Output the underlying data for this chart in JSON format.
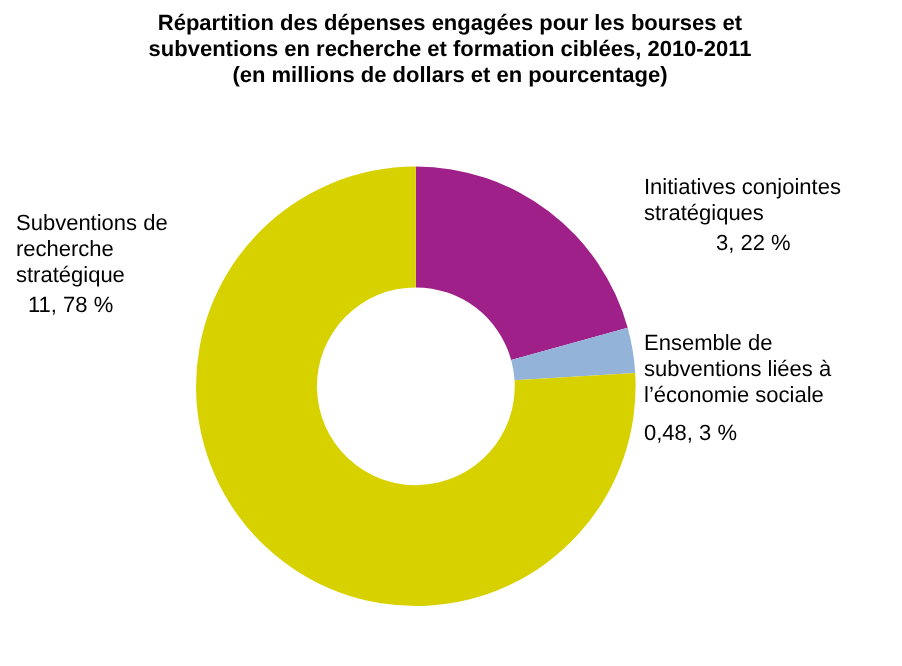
{
  "chart_data": {
    "type": "donut",
    "title": "Répartition des dépenses engagées pour les bourses et subventions en recherche et formation ciblées, 2010-2011",
    "subtitle": "(en millions de dollars et en pourcentage)",
    "categories": [
      "Initiatives conjointes stratégiques",
      "Ensemble de subventions liées à l’économie sociale",
      "Subventions de recherche stratégique"
    ],
    "values": [
      3,
      0.48,
      11
    ],
    "value_labels": [
      "3, 22 %",
      "0,48, 3 %",
      "11, 78 %"
    ],
    "colors": [
      "#a0208a",
      "#93b3d9",
      "#d8d100"
    ],
    "legend": false
  }
}
